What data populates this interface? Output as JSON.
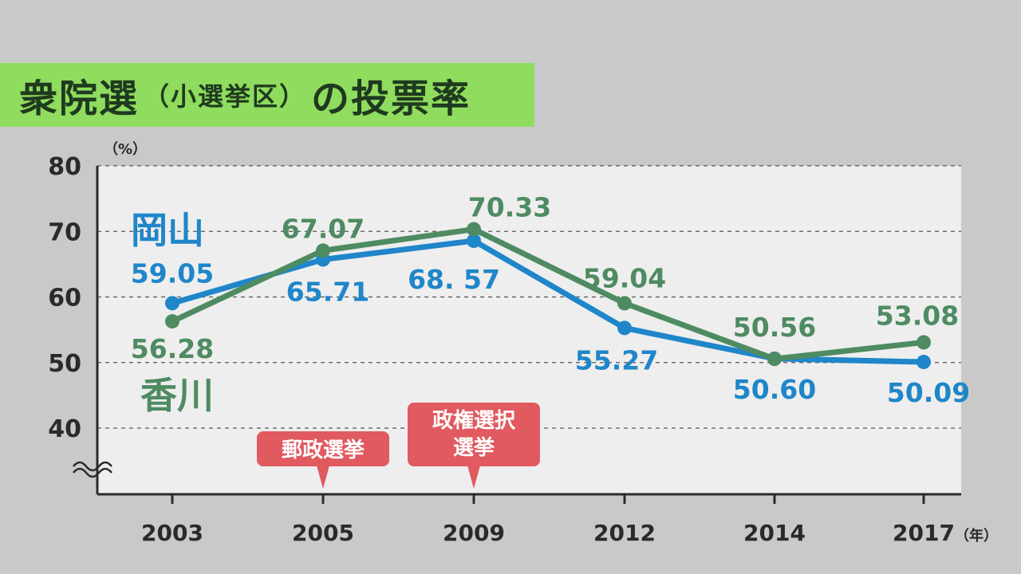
{
  "title": {
    "main_before": "衆院選",
    "sub": "（小選挙区）",
    "main_after": "の投票率"
  },
  "chart_data": {
    "type": "line",
    "x": [
      "2003",
      "2005",
      "2009",
      "2012",
      "2014",
      "2017"
    ],
    "ylim": [
      30,
      80
    ],
    "y_ticks": [
      40,
      50,
      60,
      70,
      80
    ],
    "y_unit": "（%）",
    "x_unit": "（年）",
    "grid": true,
    "series": [
      {
        "name": "岡山",
        "color": "#1f86c9",
        "values": [
          59.05,
          65.71,
          68.57,
          55.27,
          50.6,
          50.09
        ],
        "labels": [
          "59.05",
          "65.71",
          "68. 57",
          "55.27",
          "50.60",
          "50.09"
        ],
        "label_pos": [
          "above",
          "below",
          "below",
          "below",
          "below",
          "below"
        ]
      },
      {
        "name": "香川",
        "color": "#4e8b62",
        "values": [
          56.28,
          67.07,
          70.33,
          59.04,
          50.56,
          53.08
        ],
        "labels": [
          "56.28",
          "67.07",
          "70.33",
          "59.04",
          "50.56",
          "53.08"
        ],
        "label_pos": [
          "below",
          "above",
          "above",
          "above",
          "above",
          "above"
        ]
      }
    ],
    "annotations": [
      {
        "x": "2005",
        "lines": [
          "郵政選挙"
        ]
      },
      {
        "x": "2009",
        "lines": [
          "政権選択",
          "選挙"
        ]
      }
    ],
    "annotation_color": "#e05a60"
  }
}
